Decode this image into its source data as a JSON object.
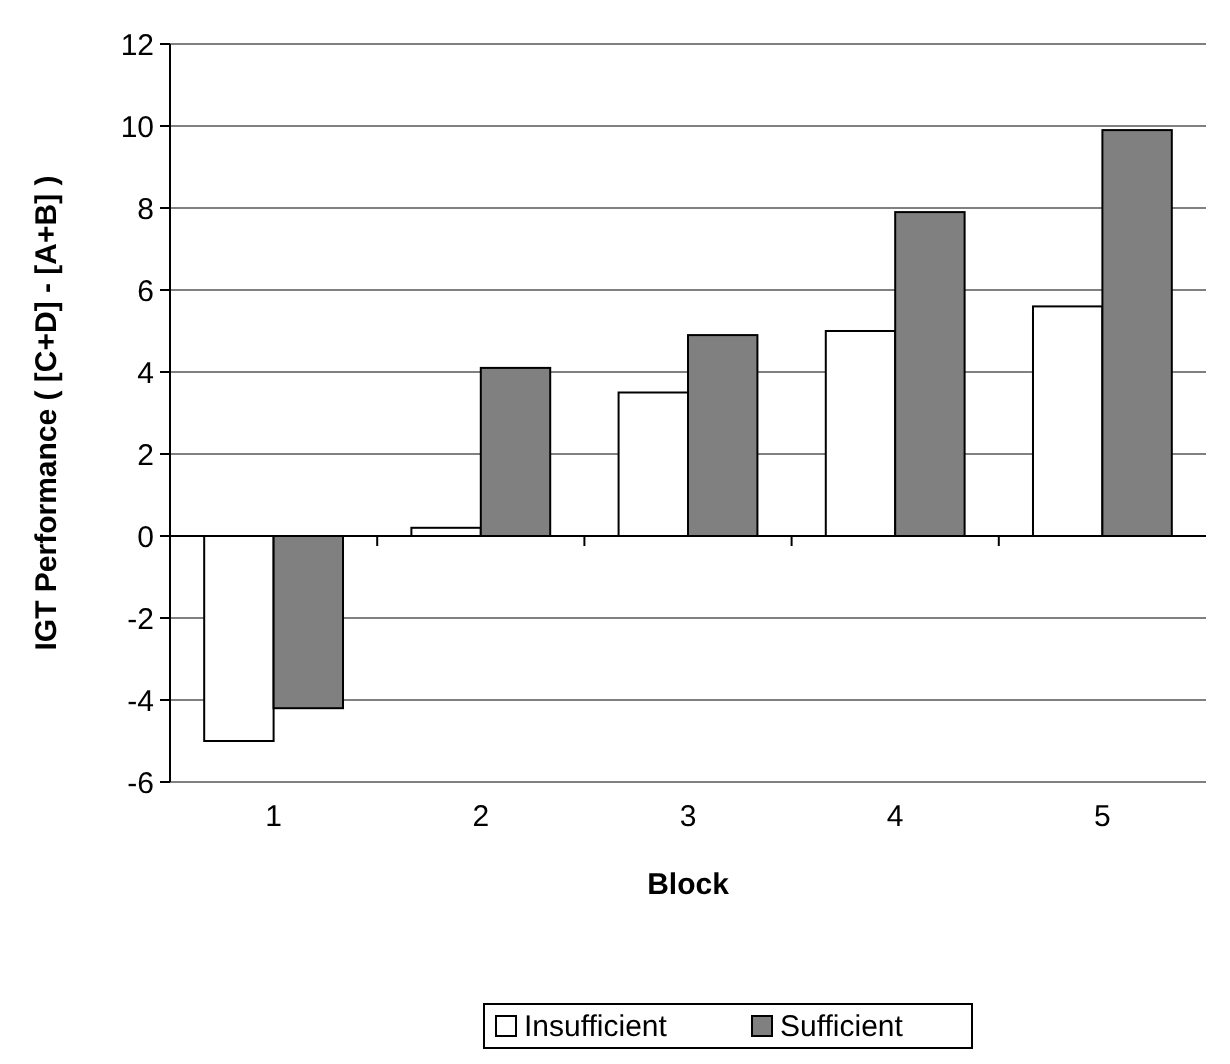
{
  "chart_data": {
    "type": "bar",
    "xlabel": "Block",
    "ylabel": "IGT Performance ( [C+D] - [A+B] )",
    "categories": [
      "1",
      "2",
      "3",
      "4",
      "5"
    ],
    "series": [
      {
        "name": "Insufficient",
        "color": "#ffffff",
        "values": [
          -5.0,
          0.2,
          3.5,
          5.0,
          5.6
        ]
      },
      {
        "name": "Sufficient",
        "color": "#808080",
        "values": [
          -4.2,
          4.1,
          4.9,
          7.9,
          9.9
        ]
      }
    ],
    "ylim": [
      -6,
      12
    ],
    "yticks": [
      -6,
      -4,
      -2,
      0,
      2,
      4,
      6,
      8,
      10,
      12
    ],
    "grid": "y",
    "legend": "bottom"
  }
}
